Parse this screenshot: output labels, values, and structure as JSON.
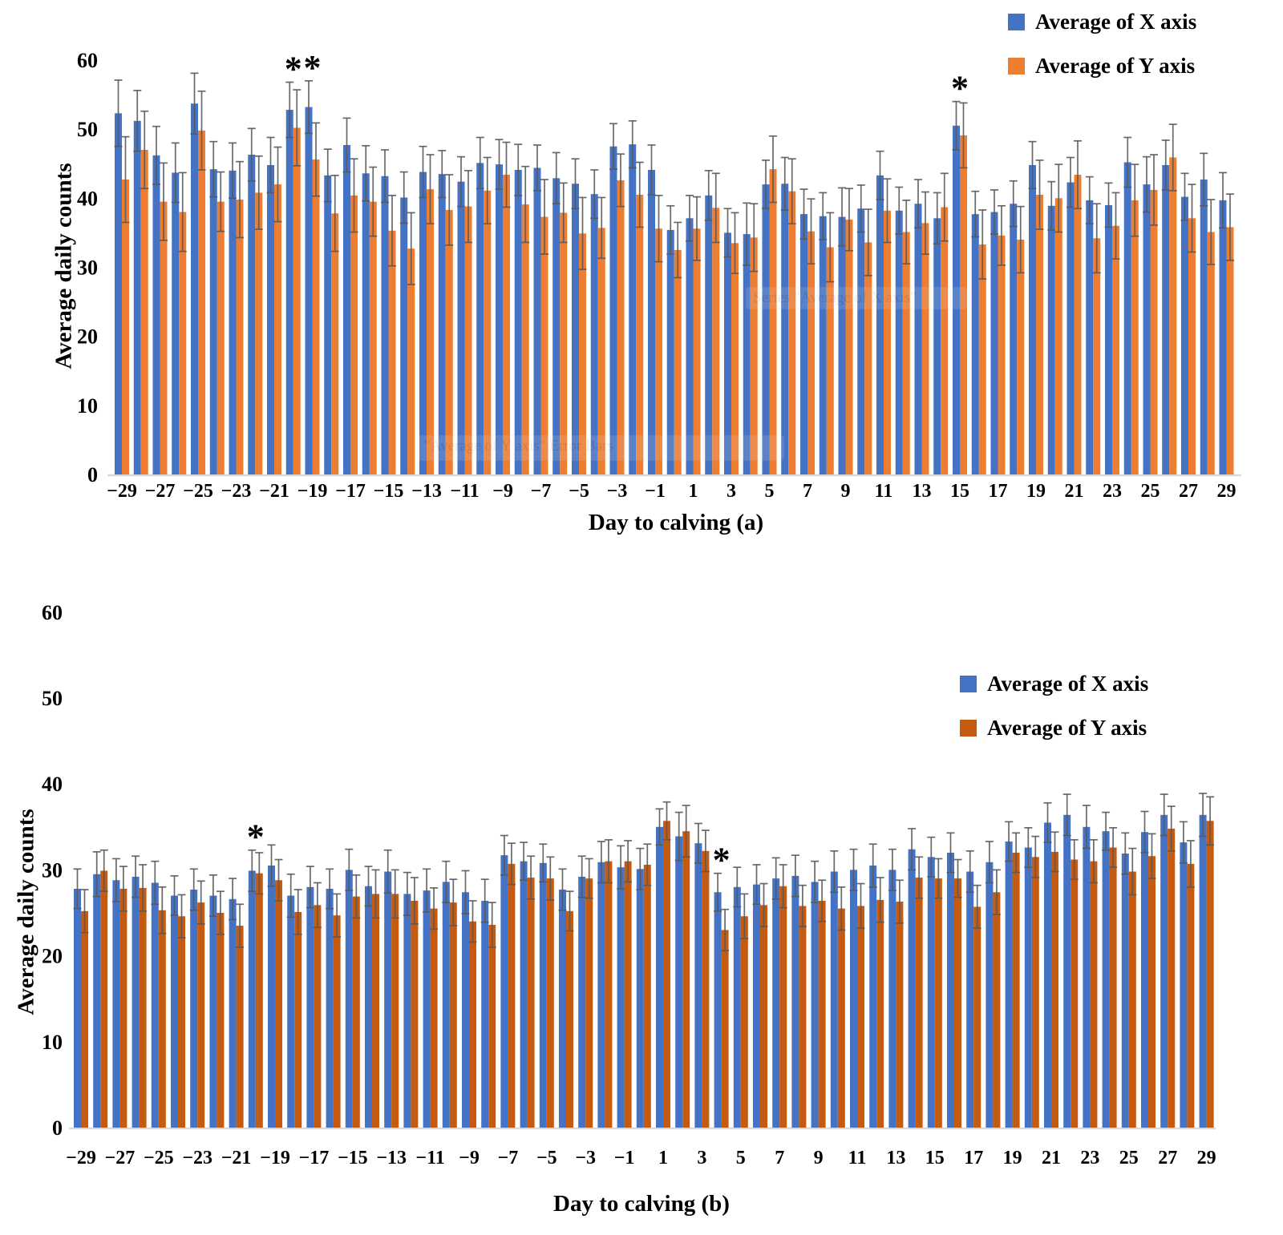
{
  "figure": {
    "background": "#ffffff",
    "significance_marker": "*"
  },
  "artifacts": [
    {
      "text": "Series \"Average of X axis\""
    },
    {
      "text": "\"Average of Y axis\" Error Bars"
    }
  ],
  "chart_data": [
    {
      "id": "a",
      "type": "bar",
      "title": "Day to calving (a)",
      "ylabel": "Average daily counts",
      "ylim": [
        0,
        60
      ],
      "yticks": [
        0,
        10,
        20,
        30,
        40,
        50,
        60
      ],
      "grid": false,
      "legend_position": "top-right",
      "error_bars": true,
      "colors": {
        "x": "#4472C4",
        "y": "#ED7D31",
        "error": "#595959",
        "axis": "#D9D9D9"
      },
      "asterisk_days": [
        -20,
        -19,
        15
      ],
      "days": [
        -29,
        -28,
        -27,
        -26,
        -25,
        -24,
        -23,
        -22,
        -21,
        -20,
        -19,
        -18,
        -17,
        -16,
        -15,
        -14,
        -13,
        -12,
        -11,
        -10,
        -9,
        -8,
        -7,
        -6,
        -5,
        -4,
        -3,
        -2,
        -1,
        0,
        1,
        2,
        3,
        4,
        5,
        6,
        7,
        8,
        9,
        10,
        11,
        12,
        13,
        14,
        15,
        16,
        17,
        18,
        19,
        20,
        21,
        22,
        23,
        24,
        25,
        26,
        27,
        28,
        29
      ],
      "xtick_labels": [
        "−29",
        "−27",
        "−25",
        "−23",
        "−21",
        "−19",
        "−17",
        "−15",
        "−13",
        "−11",
        "−9",
        "−7",
        "−5",
        "−3",
        "−1",
        "1",
        "3",
        "5",
        "7",
        "9",
        "11",
        "13",
        "15",
        "17",
        "19",
        "21",
        "23",
        "25",
        "27",
        "29"
      ],
      "series": [
        {
          "name": "Average of X axis",
          "values": [
            52.3,
            51.2,
            46.2,
            43.7,
            53.7,
            44.2,
            44.0,
            46.3,
            44.8,
            52.8,
            53.2,
            43.3,
            47.7,
            43.6,
            43.2,
            40.1,
            43.8,
            43.5,
            42.4,
            45.1,
            44.9,
            44.1,
            44.4,
            42.9,
            42.1,
            40.6,
            47.5,
            47.8,
            44.1,
            35.4,
            37.1,
            40.4,
            35.0,
            34.8,
            42.0,
            42.1,
            37.7,
            37.4,
            37.3,
            38.5,
            43.3,
            38.2,
            39.2,
            37.1,
            50.5,
            37.7,
            38.0,
            39.2,
            44.8,
            38.9,
            42.3,
            39.7,
            39.0,
            45.2,
            42.0,
            44.8,
            40.2,
            42.7,
            39.7
          ],
          "errors": [
            4.8,
            4.4,
            4.2,
            4.3,
            4.4,
            4.0,
            4.0,
            3.8,
            4.0,
            4.0,
            3.8,
            3.8,
            3.9,
            4.0,
            3.8,
            3.7,
            3.7,
            3.4,
            3.6,
            3.7,
            3.6,
            3.7,
            3.3,
            3.7,
            3.6,
            3.5,
            3.3,
            3.4,
            3.6,
            3.5,
            3.3,
            3.6,
            3.5,
            4.5,
            3.5,
            3.8,
            3.6,
            3.4,
            4.2,
            3.4,
            3.5,
            3.4,
            3.5,
            3.7,
            3.5,
            3.3,
            3.2,
            3.3,
            3.4,
            3.5,
            3.6,
            3.4,
            3.2,
            3.6,
            4.0,
            3.6,
            3.4,
            3.8,
            4.0
          ]
        },
        {
          "name": "Average of Y axis",
          "values": [
            42.7,
            47.0,
            39.5,
            38.0,
            49.8,
            39.5,
            39.8,
            40.8,
            42.0,
            50.2,
            45.6,
            37.8,
            40.4,
            39.5,
            35.3,
            32.7,
            41.3,
            38.3,
            38.8,
            41.1,
            43.4,
            39.1,
            37.3,
            37.9,
            34.9,
            35.7,
            42.6,
            40.5,
            35.6,
            32.5,
            35.6,
            38.6,
            33.5,
            34.3,
            44.2,
            41.0,
            35.2,
            32.9,
            36.9,
            33.6,
            38.2,
            35.1,
            36.4,
            38.7,
            49.1,
            33.3,
            34.6,
            34.0,
            40.5,
            40.0,
            43.4,
            34.2,
            36.0,
            39.7,
            41.2,
            45.9,
            37.1,
            35.1,
            35.8
          ],
          "errors": [
            6.2,
            5.6,
            5.6,
            5.7,
            5.7,
            4.3,
            5.5,
            5.3,
            5.4,
            5.5,
            5.3,
            5.5,
            5.3,
            5.0,
            5.1,
            5.2,
            5.0,
            5.1,
            5.2,
            4.8,
            4.7,
            5.5,
            5.4,
            4.3,
            5.2,
            4.4,
            3.8,
            4.7,
            4.8,
            4.0,
            4.6,
            5.0,
            4.4,
            4.9,
            4.8,
            4.7,
            4.7,
            5.0,
            4.5,
            4.8,
            4.6,
            4.6,
            4.5,
            4.9,
            4.7,
            5.0,
            4.3,
            4.8,
            5.0,
            4.9,
            4.9,
            5.0,
            4.8,
            5.2,
            5.1,
            4.8,
            4.9,
            4.7,
            4.8
          ]
        }
      ]
    },
    {
      "id": "b",
      "type": "bar",
      "title": "Day to calving (b)",
      "ylabel": "Average daily counts",
      "ylim": [
        0,
        60
      ],
      "yticks": [
        0,
        10,
        20,
        30,
        40,
        50,
        60
      ],
      "grid": false,
      "legend_position": "top-right",
      "error_bars": true,
      "colors": {
        "x": "#4472C4",
        "y": "#C55A11",
        "error": "#595959",
        "axis": "#D9D9D9"
      },
      "asterisk_days": [
        -20,
        4
      ],
      "days": [
        -29,
        -28,
        -27,
        -26,
        -25,
        -24,
        -23,
        -22,
        -21,
        -20,
        -19,
        -18,
        -17,
        -16,
        -15,
        -14,
        -13,
        -12,
        -11,
        -10,
        -9,
        -8,
        -7,
        -6,
        -5,
        -4,
        -3,
        -2,
        -1,
        0,
        1,
        2,
        3,
        4,
        5,
        6,
        7,
        8,
        9,
        10,
        11,
        12,
        13,
        14,
        15,
        16,
        17,
        18,
        19,
        20,
        21,
        22,
        23,
        24,
        25,
        26,
        27,
        28,
        29
      ],
      "xtick_labels": [
        "−29",
        "−27",
        "−25",
        "−23",
        "−21",
        "−19",
        "−17",
        "−15",
        "−13",
        "−11",
        "−9",
        "−7",
        "−5",
        "−3",
        "−1",
        "1",
        "3",
        "5",
        "7",
        "9",
        "11",
        "13",
        "15",
        "17",
        "19",
        "21",
        "23",
        "25",
        "27",
        "29"
      ],
      "series": [
        {
          "name": "Average of X axis",
          "values": [
            27.8,
            29.5,
            28.8,
            29.2,
            28.5,
            27.0,
            27.7,
            27.0,
            26.6,
            29.9,
            30.5,
            27.0,
            28.0,
            27.8,
            30.0,
            28.1,
            29.8,
            27.2,
            27.6,
            28.6,
            27.4,
            26.4,
            31.7,
            31.0,
            30.8,
            27.7,
            29.2,
            30.9,
            30.3,
            30.1,
            35.0,
            33.9,
            33.1,
            27.4,
            28.0,
            28.3,
            29.0,
            29.3,
            28.6,
            29.8,
            30.0,
            30.5,
            30.0,
            32.4,
            31.5,
            32.0,
            29.8,
            30.9,
            33.3,
            32.6,
            35.5,
            36.4,
            35.0,
            34.5,
            31.9,
            34.4,
            36.4,
            33.2,
            36.4
          ],
          "errors": [
            2.3,
            2.6,
            2.5,
            2.4,
            2.5,
            2.3,
            2.4,
            2.4,
            2.4,
            2.4,
            2.4,
            2.5,
            2.4,
            2.3,
            2.4,
            2.3,
            2.5,
            2.5,
            2.5,
            2.4,
            2.5,
            2.5,
            2.3,
            2.2,
            2.2,
            2.4,
            2.4,
            2.4,
            2.5,
            2.4,
            2.1,
            2.8,
            2.3,
            2.2,
            2.3,
            2.3,
            2.4,
            2.4,
            2.4,
            2.4,
            2.4,
            2.5,
            2.4,
            2.4,
            2.3,
            2.3,
            2.4,
            2.4,
            2.3,
            2.3,
            2.3,
            2.4,
            2.5,
            2.2,
            2.4,
            2.4,
            2.4,
            2.4,
            2.5
          ]
        },
        {
          "name": "Average of Y axis",
          "values": [
            25.2,
            29.9,
            27.8,
            27.9,
            25.3,
            24.6,
            26.2,
            25.0,
            23.5,
            29.6,
            28.8,
            25.1,
            25.9,
            24.7,
            26.9,
            27.2,
            27.2,
            26.4,
            25.5,
            26.2,
            24.0,
            23.6,
            30.7,
            29.1,
            29.0,
            25.2,
            29.0,
            31.0,
            31.0,
            30.6,
            35.7,
            34.5,
            32.2,
            23.0,
            24.6,
            25.9,
            28.1,
            25.8,
            26.4,
            25.5,
            25.8,
            26.5,
            26.3,
            29.1,
            29.0,
            29.0,
            25.7,
            27.4,
            32.0,
            31.5,
            32.1,
            31.2,
            31.0,
            32.6,
            29.8,
            31.6,
            34.8,
            30.7,
            35.7
          ],
          "errors": [
            2.5,
            2.4,
            2.6,
            2.7,
            2.7,
            2.5,
            2.5,
            2.5,
            2.5,
            2.4,
            2.4,
            2.6,
            2.6,
            2.5,
            2.5,
            2.8,
            2.8,
            2.7,
            2.4,
            2.7,
            2.4,
            2.6,
            2.4,
            2.5,
            2.5,
            2.3,
            2.3,
            2.5,
            2.4,
            2.4,
            2.2,
            3.0,
            2.4,
            2.4,
            2.6,
            2.5,
            2.5,
            2.4,
            2.4,
            2.5,
            2.6,
            2.6,
            2.5,
            2.4,
            2.3,
            2.2,
            2.5,
            2.6,
            2.3,
            2.4,
            2.3,
            2.3,
            2.5,
            2.3,
            2.7,
            2.6,
            2.6,
            2.7,
            2.8
          ]
        }
      ]
    }
  ]
}
